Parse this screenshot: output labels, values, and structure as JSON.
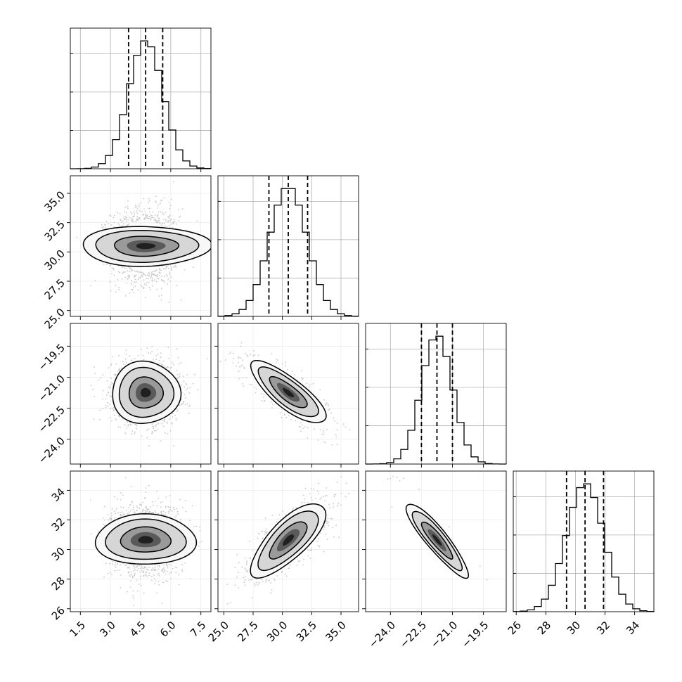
{
  "chart_data": {
    "type": "corner",
    "description": "Corner plot of 4 sampled parameters with 1D marginal histograms and 2D density contours",
    "parameters": [
      {
        "index": 0,
        "range": [
          1.0,
          8.0
        ],
        "ticks": [
          "1.5",
          "3.0",
          "4.5",
          "6.0",
          "7.5"
        ],
        "tick_values": [
          1.5,
          3.0,
          4.5,
          6.0,
          7.5
        ],
        "quantiles": [
          3.9,
          4.75,
          5.6
        ],
        "mean": 4.75,
        "std": 0.85
      },
      {
        "index": 1,
        "range": [
          24.5,
          36.5
        ],
        "ticks": [
          "25.0",
          "27.5",
          "30.0",
          "32.5",
          "35.0"
        ],
        "tick_values": [
          25.0,
          27.5,
          30.0,
          32.5,
          35.0
        ],
        "quantiles": [
          28.85,
          30.5,
          32.15
        ],
        "mean": 30.5,
        "std": 1.6
      },
      {
        "index": 2,
        "range": [
          -25.2,
          -18.4
        ],
        "ticks": [
          "−24.0",
          "−22.5",
          "−21.0",
          "−19.5"
        ],
        "tick_values": [
          -24.0,
          -22.5,
          -21.0,
          -19.5
        ],
        "quantiles": [
          -22.5,
          -21.75,
          -21.0
        ],
        "mean": -21.75,
        "std": 0.75
      },
      {
        "index": 3,
        "range": [
          25.8,
          35.3
        ],
        "ticks": [
          "26",
          "28",
          "30",
          "32",
          "34"
        ],
        "tick_values": [
          26,
          28,
          30,
          32,
          34
        ],
        "quantiles": [
          29.4,
          30.65,
          31.9
        ],
        "mean": 30.65,
        "std": 1.25
      }
    ],
    "correlations": {
      "0-1": 0.0,
      "0-2": 0.0,
      "0-3": 0.0,
      "1-2": -0.8,
      "1-3": 0.75,
      "2-3": -0.9
    },
    "histogram_bins": 20,
    "contour_levels_sigma": [
      1.0,
      1.6,
      2.0
    ],
    "grid": true,
    "colors": {
      "line": "#000000",
      "grid": "#b0b0b0",
      "scatter": "#c8c8c8"
    }
  }
}
